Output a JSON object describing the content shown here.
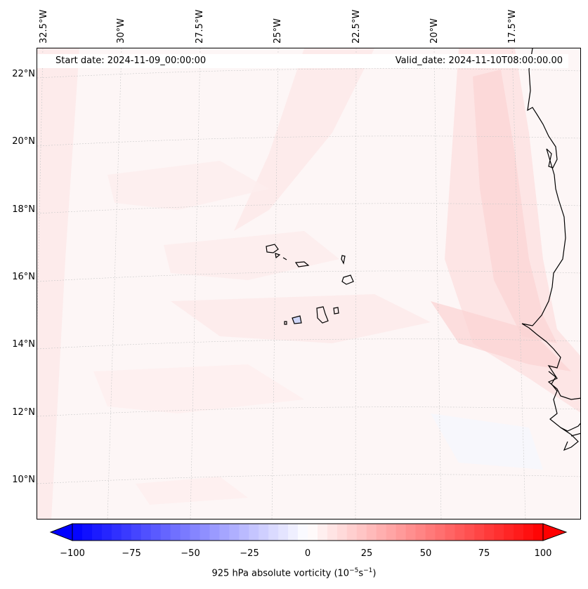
{
  "map": {
    "start_date": "Start date: 2024-11-09_00:00:00",
    "valid_date": "Valid_date: 2024-11-10T08:00:00.00",
    "longitude_labels": [
      "32.5°W",
      "30°W",
      "27.5°W",
      "25°W",
      "22.5°W",
      "20°W",
      "17.5°W"
    ],
    "latitude_labels": [
      "22°N",
      "20°N",
      "18°N",
      "16°N",
      "14°N",
      "12°N",
      "10°N"
    ],
    "field": "925 hPa absolute vorticity",
    "colors": {
      "positive": "#ff0000",
      "negative": "#0000ff",
      "neutral": "#ffffff",
      "coast": "#000000"
    }
  },
  "colorbar": {
    "label_prefix": "925 hPa absolute vorticity (10",
    "label_exp1": "−5",
    "label_mid": "s",
    "label_exp2": "−1",
    "label_suffix": ")",
    "min": -100,
    "max": 100,
    "levels": 48,
    "ticks": [
      "−100",
      "−75",
      "−50",
      "−25",
      "0",
      "25",
      "50",
      "75",
      "100"
    ]
  }
}
